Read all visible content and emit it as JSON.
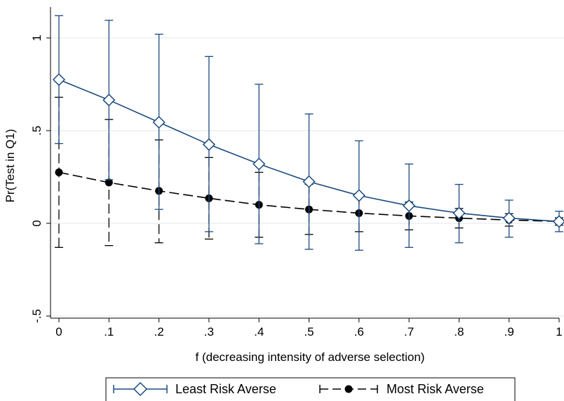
{
  "chart_data": {
    "type": "line",
    "title": "",
    "xlabel": "f (decreasing intensity of adverse selection)",
    "ylabel": "Pr(Test in Q1)",
    "x": [
      0,
      0.1,
      0.2,
      0.3,
      0.4,
      0.5,
      0.6,
      0.7,
      0.8,
      0.9,
      1
    ],
    "x_tick_labels": [
      "0",
      ".1",
      ".2",
      ".3",
      ".4",
      ".5",
      ".6",
      ".7",
      ".8",
      ".9",
      "1"
    ],
    "y_ticks": [
      -0.5,
      0,
      0.5,
      1
    ],
    "y_tick_labels": [
      "-.5",
      "0",
      ".5",
      "1"
    ],
    "xlim": [
      0,
      1
    ],
    "ylim": [
      -0.5,
      1.1
    ],
    "grid": "horizontal",
    "legend_position": "bottom",
    "series": [
      {
        "name": "Least Risk Averse",
        "color": "#1a4a80",
        "line_style": "solid",
        "marker": "hollow-diamond",
        "values": [
          0.775,
          0.665,
          0.545,
          0.425,
          0.32,
          0.225,
          0.15,
          0.095,
          0.055,
          0.028,
          0.01
        ],
        "ci_low": [
          0.43,
          0.235,
          0.075,
          -0.045,
          -0.11,
          -0.14,
          -0.145,
          -0.13,
          -0.105,
          -0.075,
          -0.045
        ],
        "ci_high": [
          1.12,
          1.095,
          1.02,
          0.9,
          0.75,
          0.59,
          0.445,
          0.32,
          0.21,
          0.125,
          0.065
        ]
      },
      {
        "name": "Most Risk Averse",
        "color": "#000000",
        "line_style": "dashed",
        "marker": "filled-circle",
        "values": [
          0.275,
          0.22,
          0.175,
          0.135,
          0.1,
          0.075,
          0.055,
          0.04,
          0.028,
          0.018,
          0.01
        ],
        "ci_low": [
          -0.13,
          -0.12,
          -0.105,
          -0.085,
          -0.075,
          -0.06,
          -0.045,
          -0.035,
          -0.025,
          -0.015,
          -0.01
        ],
        "ci_high": [
          0.68,
          0.56,
          0.45,
          0.355,
          0.275,
          0.21,
          0.155,
          0.115,
          0.08,
          0.052,
          0.03
        ]
      }
    ]
  }
}
